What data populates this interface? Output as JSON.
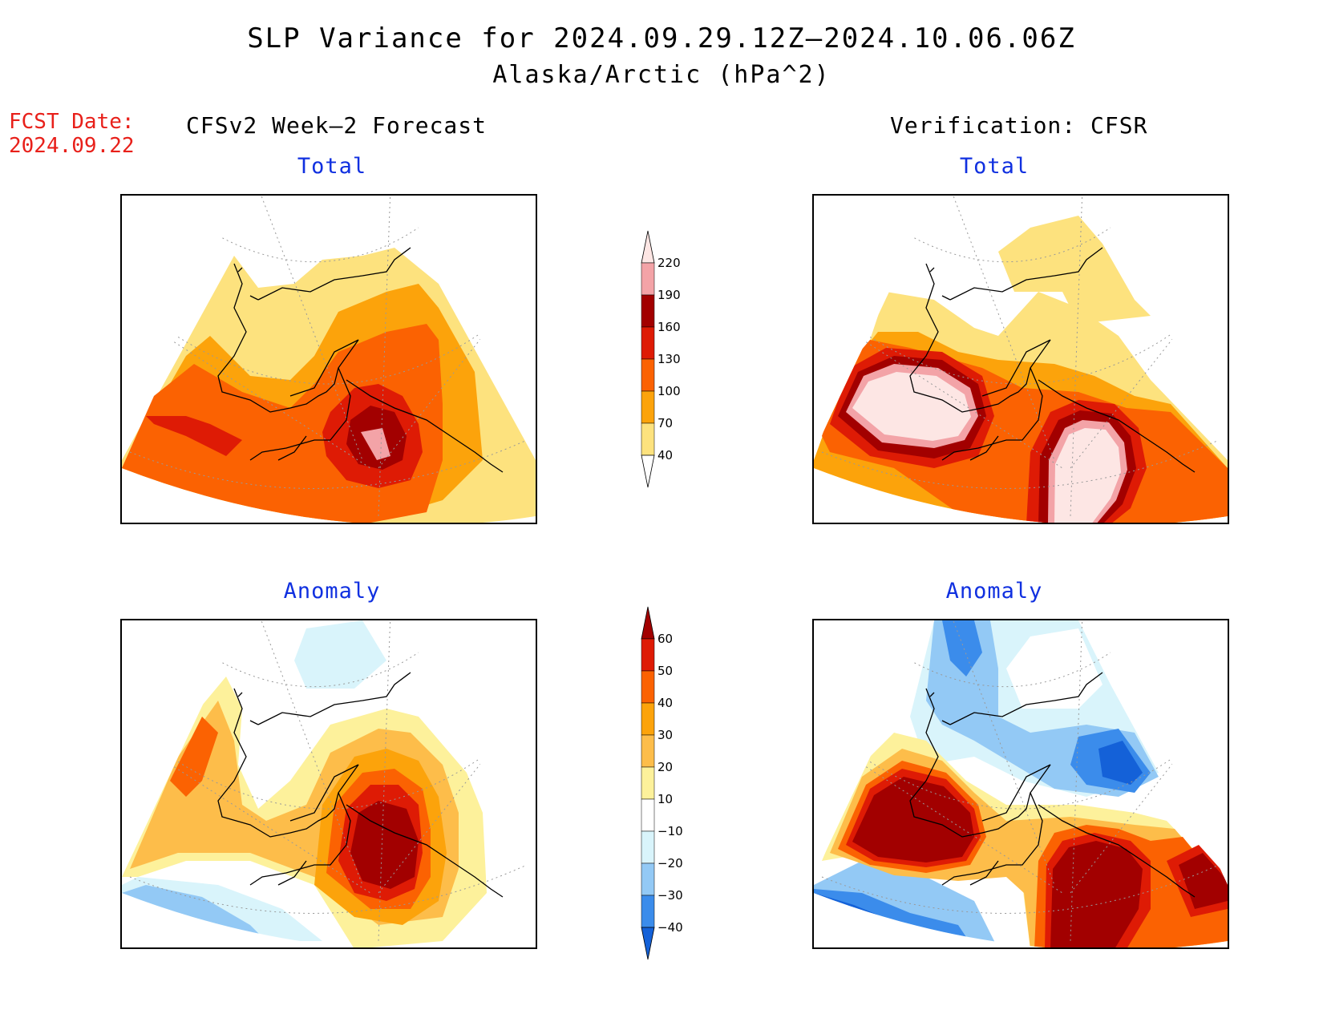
{
  "title": "SLP Variance for 2024.09.29.12Z–2024.10.06.06Z",
  "subtitle": "Alaska/Arctic (hPa^2)",
  "fcst_date": {
    "label": "FCST Date:",
    "value": "2024.09.22"
  },
  "left_column_title": "CFSv2 Week–2 Forecast",
  "right_column_title": "Verification: CFSR",
  "panels": {
    "forecast_total": "Total",
    "verification_total": "Total",
    "forecast_anomaly": "Anomaly",
    "verification_anomaly": "Anomaly"
  },
  "colorbars": {
    "total": {
      "levels": [
        "40",
        "70",
        "100",
        "130",
        "160",
        "190",
        "220"
      ],
      "colors": [
        "#ffffff",
        "#fde27e",
        "#fca30b",
        "#fb6202",
        "#de1b05",
        "#a20000",
        "#f3a3a7",
        "#fde6e4"
      ]
    },
    "anomaly": {
      "levels": [
        "−40",
        "−30",
        "−20",
        "−10",
        "10",
        "20",
        "30",
        "40",
        "50",
        "60"
      ],
      "colors": [
        "#1461d8",
        "#3b8ceb",
        "#93c9f5",
        "#d9f4fb",
        "#ffffff",
        "#fdf19b",
        "#fdbd4a",
        "#fca30b",
        "#fb6202",
        "#de1b05",
        "#a20000"
      ]
    }
  }
}
